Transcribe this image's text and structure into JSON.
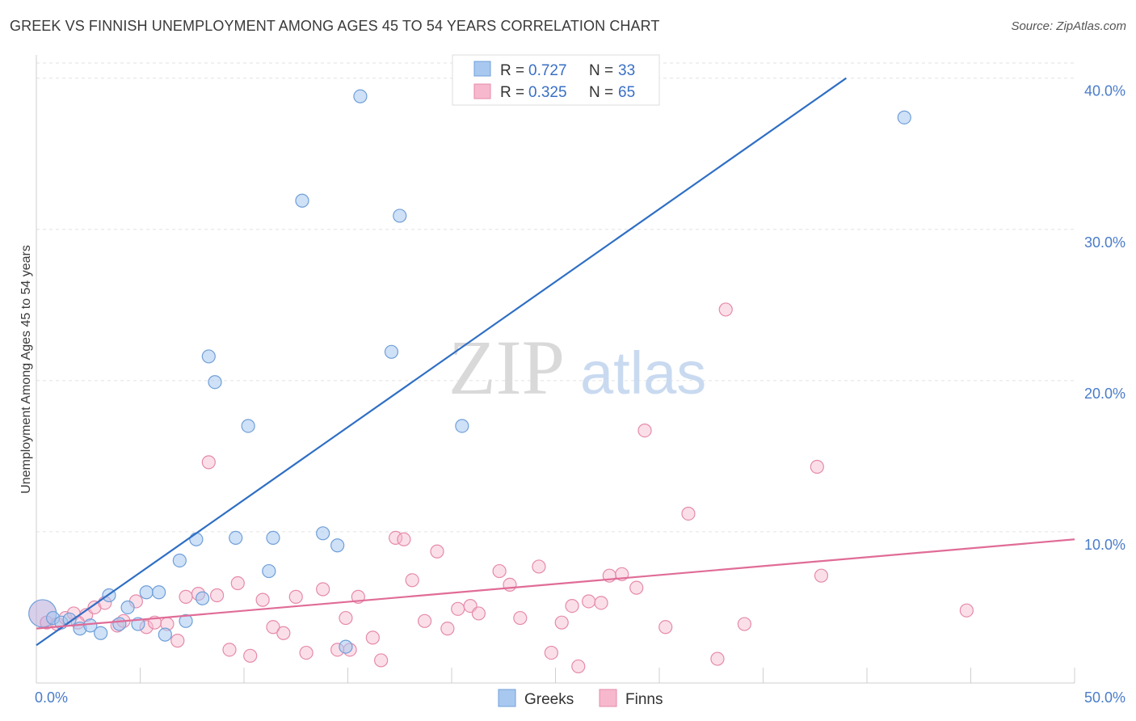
{
  "title": "GREEK VS FINNISH UNEMPLOYMENT AMONG AGES 45 TO 54 YEARS CORRELATION CHART",
  "source": "Source: ZipAtlas.com",
  "watermark": {
    "zip": "ZIP",
    "atlas": "atlas"
  },
  "colors": {
    "greek_fill": "#a8c8f0",
    "greek_stroke": "#6f9fd8",
    "greek_line": "#2f6fc4",
    "finn_fill": "#f7b8cd",
    "finn_stroke": "#e58aab",
    "finn_line": "#e06c97",
    "grid": "#e2e2e2",
    "tick_label": "#4a7cc9"
  },
  "legend": {
    "greek": {
      "r_label": "R =",
      "r_value": "0.727",
      "n_label": "N =",
      "n_value": "33"
    },
    "finn": {
      "r_label": "R =",
      "r_value": "0.325",
      "n_label": "N =",
      "n_value": "65"
    }
  },
  "chart_data": {
    "type": "scatter",
    "title": "GREEK VS FINNISH UNEMPLOYMENT AMONG AGES 45 TO 54 YEARS CORRELATION CHART",
    "xlabel": "",
    "ylabel": "Unemployment Among Ages 45 to 54 years",
    "xlim": [
      0,
      50
    ],
    "ylim": [
      0,
      41
    ],
    "x_tick_labels": [
      "0.0%",
      "50.0%"
    ],
    "y_ticks": [
      10,
      20,
      30,
      40
    ],
    "y_tick_labels": [
      "10.0%",
      "20.0%",
      "30.0%",
      "40.0%"
    ],
    "grid": true,
    "legend_position": "top-center",
    "series": [
      {
        "name": "Greeks",
        "R": 0.727,
        "N": 33,
        "trend": {
          "x": [
            0,
            39
          ],
          "y": [
            2.5,
            40.0
          ]
        },
        "points": [
          {
            "x": 0.3,
            "y": 4.6,
            "big": true
          },
          {
            "x": 0.8,
            "y": 4.3
          },
          {
            "x": 1.2,
            "y": 4.0
          },
          {
            "x": 1.6,
            "y": 4.2
          },
          {
            "x": 2.1,
            "y": 3.6
          },
          {
            "x": 2.6,
            "y": 3.8
          },
          {
            "x": 3.1,
            "y": 3.3
          },
          {
            "x": 3.5,
            "y": 5.8
          },
          {
            "x": 4.0,
            "y": 3.9
          },
          {
            "x": 4.4,
            "y": 5.0
          },
          {
            "x": 4.9,
            "y": 3.9
          },
          {
            "x": 5.3,
            "y": 6.0
          },
          {
            "x": 5.9,
            "y": 6.0
          },
          {
            "x": 6.2,
            "y": 3.2
          },
          {
            "x": 6.9,
            "y": 8.1
          },
          {
            "x": 7.2,
            "y": 4.1
          },
          {
            "x": 7.7,
            "y": 9.5
          },
          {
            "x": 8.0,
            "y": 5.6
          },
          {
            "x": 8.3,
            "y": 21.6
          },
          {
            "x": 8.6,
            "y": 19.9
          },
          {
            "x": 9.6,
            "y": 9.6
          },
          {
            "x": 10.2,
            "y": 17.0
          },
          {
            "x": 11.2,
            "y": 7.4
          },
          {
            "x": 11.4,
            "y": 9.6
          },
          {
            "x": 12.8,
            "y": 31.9
          },
          {
            "x": 13.8,
            "y": 9.9
          },
          {
            "x": 14.5,
            "y": 9.1
          },
          {
            "x": 14.9,
            "y": 2.4
          },
          {
            "x": 15.6,
            "y": 38.8
          },
          {
            "x": 17.1,
            "y": 21.9
          },
          {
            "x": 17.5,
            "y": 30.9
          },
          {
            "x": 20.5,
            "y": 17.0
          },
          {
            "x": 41.8,
            "y": 37.4
          }
        ]
      },
      {
        "name": "Finns",
        "R": 0.325,
        "N": 65,
        "trend": {
          "x": [
            0,
            50
          ],
          "y": [
            3.6,
            9.5
          ]
        },
        "points": [
          {
            "x": 0.5,
            "y": 4.0
          },
          {
            "x": 1.0,
            "y": 3.9
          },
          {
            "x": 1.4,
            "y": 4.3
          },
          {
            "x": 1.8,
            "y": 4.6
          },
          {
            "x": 2.4,
            "y": 4.5
          },
          {
            "x": 2.8,
            "y": 5.0
          },
          {
            "x": 3.3,
            "y": 5.3
          },
          {
            "x": 3.9,
            "y": 3.8
          },
          {
            "x": 4.2,
            "y": 4.1
          },
          {
            "x": 4.8,
            "y": 5.4
          },
          {
            "x": 5.3,
            "y": 3.7
          },
          {
            "x": 5.7,
            "y": 4.0
          },
          {
            "x": 6.3,
            "y": 3.9
          },
          {
            "x": 6.8,
            "y": 2.8
          },
          {
            "x": 7.2,
            "y": 5.7
          },
          {
            "x": 7.8,
            "y": 5.9
          },
          {
            "x": 8.3,
            "y": 14.6
          },
          {
            "x": 8.7,
            "y": 5.8
          },
          {
            "x": 9.3,
            "y": 2.2
          },
          {
            "x": 9.7,
            "y": 6.6
          },
          {
            "x": 10.3,
            "y": 1.8
          },
          {
            "x": 10.9,
            "y": 5.5
          },
          {
            "x": 11.4,
            "y": 3.7
          },
          {
            "x": 11.9,
            "y": 3.3
          },
          {
            "x": 12.5,
            "y": 5.7
          },
          {
            "x": 13.0,
            "y": 2.0
          },
          {
            "x": 13.8,
            "y": 6.2
          },
          {
            "x": 14.5,
            "y": 2.2
          },
          {
            "x": 14.9,
            "y": 4.3
          },
          {
            "x": 15.1,
            "y": 2.2
          },
          {
            "x": 15.5,
            "y": 5.7
          },
          {
            "x": 16.2,
            "y": 3.0
          },
          {
            "x": 16.6,
            "y": 1.5
          },
          {
            "x": 17.3,
            "y": 9.6
          },
          {
            "x": 17.7,
            "y": 9.5
          },
          {
            "x": 18.1,
            "y": 6.8
          },
          {
            "x": 18.7,
            "y": 4.1
          },
          {
            "x": 19.3,
            "y": 8.7
          },
          {
            "x": 19.8,
            "y": 3.6
          },
          {
            "x": 20.3,
            "y": 4.9
          },
          {
            "x": 20.9,
            "y": 5.1
          },
          {
            "x": 21.3,
            "y": 4.6
          },
          {
            "x": 22.3,
            "y": 7.4
          },
          {
            "x": 22.8,
            "y": 6.5
          },
          {
            "x": 23.3,
            "y": 4.3
          },
          {
            "x": 24.2,
            "y": 7.7
          },
          {
            "x": 24.8,
            "y": 2.0
          },
          {
            "x": 25.3,
            "y": 4.0
          },
          {
            "x": 25.8,
            "y": 5.1
          },
          {
            "x": 26.1,
            "y": 1.1
          },
          {
            "x": 26.6,
            "y": 5.4
          },
          {
            "x": 27.2,
            "y": 5.3
          },
          {
            "x": 27.6,
            "y": 7.1
          },
          {
            "x": 28.2,
            "y": 7.2
          },
          {
            "x": 28.9,
            "y": 6.3
          },
          {
            "x": 29.3,
            "y": 16.7
          },
          {
            "x": 30.3,
            "y": 3.7
          },
          {
            "x": 31.4,
            "y": 11.2
          },
          {
            "x": 32.8,
            "y": 1.6
          },
          {
            "x": 33.2,
            "y": 24.7
          },
          {
            "x": 34.1,
            "y": 3.9
          },
          {
            "x": 37.8,
            "y": 7.1
          },
          {
            "x": 37.6,
            "y": 14.3
          },
          {
            "x": 44.8,
            "y": 4.8
          },
          {
            "x": 2.0,
            "y": 4.0
          }
        ]
      }
    ]
  }
}
